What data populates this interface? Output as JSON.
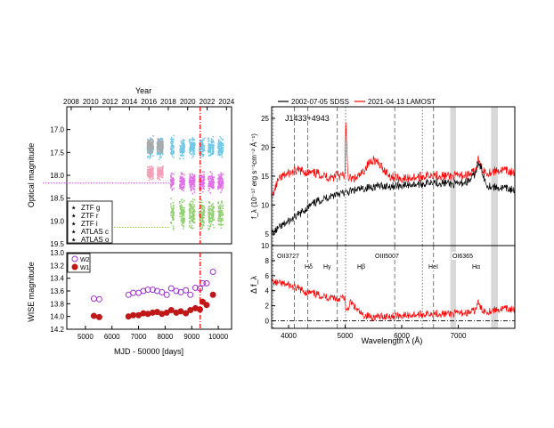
{
  "chart_data": [
    {
      "type": "scatter",
      "panel": "optical-light-curve",
      "top_axis": {
        "title": "Year",
        "ticks": [
          "2008",
          "2010",
          "2012",
          "2014",
          "2016",
          "2018",
          "2020",
          "2022",
          "2024"
        ]
      },
      "ylabel": "Optical magnitude",
      "ylim": [
        19.5,
        16.5
      ],
      "yticks": [
        "17.0",
        "17.5",
        "18.0",
        "18.5",
        "19.0",
        "19.5"
      ],
      "xlim": [
        4300,
        10500
      ],
      "reference_lines": [
        {
          "y": 18.17,
          "color": "#e040e0"
        },
        {
          "y": 19.14,
          "color": "#9acd32"
        }
      ],
      "event_line": {
        "x": 9318,
        "color": "#ff0000"
      },
      "legend": {
        "position": "bottom-left",
        "entries": [
          "ZTF g",
          "ZTF r",
          "ZTF i",
          "ATLAS c",
          "ATLAS o"
        ]
      },
      "series": [
        {
          "name": "ZTF g",
          "color": "#90d070",
          "x_range": [
            8200,
            10180
          ],
          "mag_mean": 18.85,
          "mag_scatter": 0.2
        },
        {
          "name": "ZTF r",
          "color": "#e070e8",
          "x_range": [
            8200,
            10180
          ],
          "mag_mean": 18.15,
          "mag_scatter": 0.14
        },
        {
          "name": "ZTF i",
          "color": "#70c8e8",
          "x_range": [
            7300,
            10180
          ],
          "mag_mean": 17.4,
          "mag_scatter": 0.15
        },
        {
          "name": "ATLAS c",
          "color": "#aaaaaa",
          "x_range": [
            7300,
            8200
          ],
          "mag_mean": 17.35,
          "mag_scatter": 0.12
        },
        {
          "name": "ATLAS o",
          "color": "#f4a0b8",
          "x_range": [
            7300,
            8200
          ],
          "mag_mean": 17.95,
          "mag_scatter": 0.1
        }
      ]
    },
    {
      "type": "scatter",
      "panel": "wise-light-curve",
      "ylabel": "WISE magnitude",
      "xlabel": "MJD - 50000 [days]",
      "xticks": [
        "5000",
        "6000",
        "7000",
        "8000",
        "9000",
        "10000"
      ],
      "xlim": [
        4300,
        10500
      ],
      "ylim": [
        14.2,
        13.0
      ],
      "yticks": [
        "13.0",
        "13.2",
        "13.4",
        "13.6",
        "13.8",
        "14.0",
        "14.2"
      ],
      "legend": {
        "position": "top-left",
        "entries": [
          "W2",
          "W1"
        ]
      },
      "series": [
        {
          "name": "W2",
          "marker": "open-circle",
          "color": "#9b30d0",
          "x": [
            5320,
            5520,
            6620,
            6800,
            7000,
            7180,
            7350,
            7530,
            7700,
            7880,
            8060,
            8230,
            8420,
            8590,
            8780,
            8950,
            9140,
            9310,
            9410,
            9560,
            9800
          ],
          "y": [
            13.72,
            13.73,
            13.66,
            13.63,
            13.63,
            13.6,
            13.58,
            13.58,
            13.6,
            13.62,
            13.66,
            13.56,
            13.6,
            13.62,
            13.59,
            13.66,
            13.55,
            13.56,
            13.48,
            13.48,
            13.3
          ]
        },
        {
          "name": "W1",
          "marker": "filled-circle",
          "color": "#c01818",
          "x": [
            5320,
            5520,
            6620,
            6800,
            7000,
            7180,
            7350,
            7530,
            7700,
            7880,
            8060,
            8230,
            8420,
            8590,
            8780,
            8950,
            9140,
            9310,
            9410,
            9560,
            9800
          ],
          "y": [
            13.99,
            14.01,
            14.0,
            13.98,
            13.98,
            13.95,
            13.96,
            13.94,
            13.93,
            13.96,
            13.94,
            13.9,
            13.94,
            13.92,
            13.95,
            13.9,
            13.87,
            13.89,
            13.77,
            13.82,
            13.66
          ]
        }
      ]
    },
    {
      "type": "line",
      "panel": "spectra",
      "title": "J1433+4943",
      "ylabel": "f_λ (10⁻¹⁷ erg s⁻¹cm⁻² Å⁻¹)",
      "xlim": [
        3700,
        8000
      ],
      "ylim": [
        3,
        27
      ],
      "yticks": [
        "5",
        "10",
        "15",
        "20",
        "25"
      ],
      "legend": {
        "position": "top",
        "entries": [
          "2002-07-05 SDSS",
          "2021-04-13 LAMOST"
        ]
      },
      "series": [
        {
          "name": "2002-07-05 SDSS",
          "color": "#000000",
          "x": [
            3700,
            3800,
            3900,
            4000,
            4100,
            4200,
            4300,
            4400,
            4500,
            4600,
            4700,
            4800,
            4861,
            4900,
            5000,
            5100,
            5200,
            5300,
            5400,
            5500,
            5600,
            5800,
            6000,
            6200,
            6400,
            6562,
            6600,
            6800,
            6900,
            7000,
            7200,
            7300,
            7350,
            7400,
            7500,
            7600,
            7700,
            7800,
            7900,
            8000
          ],
          "y": [
            5.0,
            5.8,
            6.5,
            7.2,
            7.8,
            8.5,
            9.3,
            10.0,
            10.6,
            11.0,
            11.4,
            11.7,
            12.2,
            12.0,
            12.1,
            12.4,
            12.6,
            12.8,
            13.0,
            13.2,
            13.3,
            13.3,
            13.4,
            13.6,
            13.7,
            14.2,
            13.9,
            13.8,
            13.6,
            13.6,
            14.2,
            15.5,
            17.0,
            16.5,
            13.5,
            13.2,
            13.0,
            12.9,
            12.8,
            12.5
          ]
        },
        {
          "name": "2021-04-13 LAMOST",
          "color": "#ff0000",
          "x": [
            3700,
            3750,
            3800,
            3900,
            4000,
            4100,
            4200,
            4300,
            4400,
            4500,
            4600,
            4700,
            4800,
            4861,
            4900,
            5000,
            5007,
            5050,
            5100,
            5200,
            5300,
            5400,
            5500,
            5600,
            5800,
            6000,
            6200,
            6400,
            6562,
            6600,
            6800,
            6900,
            7000,
            7200,
            7300,
            7350,
            7400,
            7500,
            7600,
            7700,
            7800,
            7900,
            8000
          ],
          "y": [
            11.0,
            12.5,
            14.0,
            15.0,
            15.5,
            15.8,
            16.0,
            15.7,
            15.5,
            15.5,
            15.2,
            14.8,
            14.8,
            16.0,
            15.0,
            15.2,
            25.0,
            15.0,
            14.5,
            14.6,
            15.5,
            17.0,
            18.0,
            17.0,
            15.0,
            14.5,
            14.8,
            15.0,
            15.4,
            15.2,
            15.0,
            15.0,
            15.0,
            15.3,
            15.8,
            18.0,
            16.5,
            15.6,
            15.8,
            16.0,
            16.0,
            15.8,
            15.5
          ]
        }
      ]
    },
    {
      "type": "line",
      "panel": "difference-spectrum",
      "ylabel": "Δ f_λ",
      "xlabel": "Wavelength λ (Å)",
      "xticks": [
        "4000",
        "5000",
        "6000",
        "7000"
      ],
      "xlim": [
        3700,
        8000
      ],
      "ylim": [
        -1,
        10
      ],
      "yticks": [
        "0",
        "2",
        "4",
        "6",
        "8",
        "10"
      ],
      "series": [
        {
          "name": "Δ f_λ",
          "color": "#ff0000",
          "x": [
            3700,
            3800,
            3900,
            4000,
            4100,
            4200,
            4300,
            4400,
            4500,
            4600,
            4700,
            4800,
            4861,
            4900,
            5000,
            5007,
            5100,
            5200,
            5300,
            5500,
            5700,
            6000,
            6200,
            6400,
            6562,
            6600,
            6800,
            7000,
            7200,
            7300,
            7350,
            7400,
            7500,
            7600,
            7800,
            8000
          ],
          "y": [
            5.2,
            5.0,
            4.9,
            4.8,
            4.4,
            4.2,
            3.8,
            3.7,
            3.5,
            3.3,
            3.1,
            3.2,
            2.8,
            3.0,
            3.1,
            1.0,
            2.5,
            1.5,
            0.8,
            0.5,
            0.6,
            0.7,
            0.8,
            0.9,
            1.0,
            1.0,
            0.9,
            1.0,
            1.1,
            1.4,
            2.5,
            1.6,
            1.2,
            1.4,
            1.6,
            1.5
          ]
        }
      ]
    }
  ],
  "line_labels": [
    "OII3727",
    "Hδ",
    "Hγ",
    "Hβ",
    "OIII5007",
    "HeI",
    "OI6365",
    "Hα"
  ],
  "colors": {
    "accent_red": "#ff0000",
    "wise_w1": "#c01818",
    "wise_w2": "#9b30d0",
    "shading": "#d8d8d8"
  }
}
